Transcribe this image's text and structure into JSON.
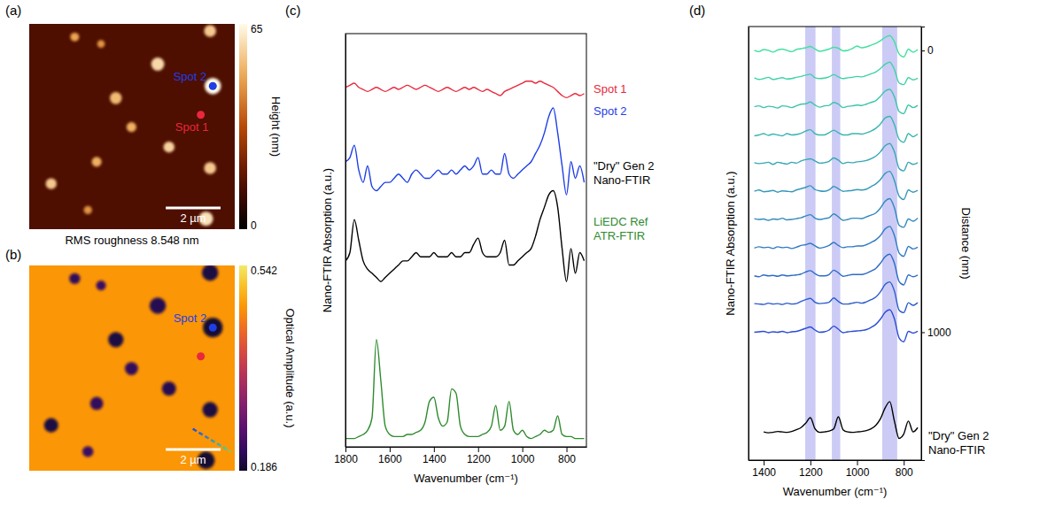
{
  "chart_data": [
    {
      "type": "image",
      "panel": "(a)",
      "xlim": [
        0,
        7.5
      ],
      "ylim": [
        0,
        7.5
      ],
      "tick_labels": false,
      "background": 14,
      "grains": [
        {
          "x": 1.66,
          "y": 0.48,
          "r": 0.16,
          "height": 48
        },
        {
          "x": 6.6,
          "y": 0.26,
          "r": 0.22,
          "height": 55
        },
        {
          "x": 6.7,
          "y": 2.27,
          "r": 0.3,
          "height": 65
        },
        {
          "x": 4.69,
          "y": 1.47,
          "r": 0.24,
          "height": 58
        },
        {
          "x": 3.16,
          "y": 2.71,
          "r": 0.22,
          "height": 52
        },
        {
          "x": 3.73,
          "y": 3.77,
          "r": 0.18,
          "height": 50
        },
        {
          "x": 2.46,
          "y": 5.04,
          "r": 0.18,
          "height": 50
        },
        {
          "x": 0.8,
          "y": 5.84,
          "r": 0.2,
          "height": 55
        },
        {
          "x": 5.1,
          "y": 4.5,
          "r": 0.2,
          "height": 57
        },
        {
          "x": 6.6,
          "y": 5.27,
          "r": 0.22,
          "height": 55
        },
        {
          "x": 6.45,
          "y": 7.12,
          "r": 0.26,
          "height": 60
        },
        {
          "x": 2.14,
          "y": 6.8,
          "r": 0.15,
          "height": 45
        },
        {
          "x": 2.62,
          "y": 0.73,
          "r": 0.14,
          "height": 45
        }
      ],
      "spots": [
        {
          "name": "Spot 2",
          "color": "#1e3ee6",
          "x": 6.7,
          "y": 2.27
        },
        {
          "name": "Spot 1",
          "color": "#e8283c",
          "x": 6.26,
          "y": 3.32
        }
      ],
      "scale_bar": {
        "length": 2,
        "label": "2 µm"
      },
      "colorbar": {
        "label": "Height (nm)",
        "range": [
          0,
          65
        ],
        "ticks": [
          0,
          65
        ]
      },
      "caption": "RMS roughness 8.548 nm"
    },
    {
      "type": "image",
      "panel": "(b)",
      "xlim": [
        0,
        7.5
      ],
      "ylim": [
        0,
        7.5
      ],
      "tick_labels": false,
      "background": 0.47,
      "grains": [
        {
          "x": 1.66,
          "y": 0.48,
          "r": 0.2,
          "amplitude": 0.22
        },
        {
          "x": 6.6,
          "y": 0.26,
          "r": 0.3,
          "amplitude": 0.2
        },
        {
          "x": 6.7,
          "y": 2.27,
          "r": 0.36,
          "amplitude": 0.19
        },
        {
          "x": 4.69,
          "y": 1.47,
          "r": 0.3,
          "amplitude": 0.21
        },
        {
          "x": 3.16,
          "y": 2.71,
          "r": 0.28,
          "amplitude": 0.2
        },
        {
          "x": 3.73,
          "y": 3.77,
          "r": 0.24,
          "amplitude": 0.22
        },
        {
          "x": 2.46,
          "y": 5.04,
          "r": 0.24,
          "amplitude": 0.22
        },
        {
          "x": 0.8,
          "y": 5.84,
          "r": 0.26,
          "amplitude": 0.2
        },
        {
          "x": 5.1,
          "y": 4.5,
          "r": 0.26,
          "amplitude": 0.21
        },
        {
          "x": 6.6,
          "y": 5.27,
          "r": 0.28,
          "amplitude": 0.2
        },
        {
          "x": 6.45,
          "y": 7.12,
          "r": 0.32,
          "amplitude": 0.19
        },
        {
          "x": 2.14,
          "y": 6.8,
          "r": 0.2,
          "amplitude": 0.23
        },
        {
          "x": 2.62,
          "y": 0.73,
          "r": 0.18,
          "amplitude": 0.23
        }
      ],
      "spots": [
        {
          "name": "Spot 2",
          "color": "#1e3ee6",
          "x": 6.7,
          "y": 2.27
        },
        {
          "color": "#e8283c",
          "x": 6.26,
          "y": 3.32
        }
      ],
      "line_scan": {
        "x": [
          5.97,
          7.34
        ],
        "y": [
          5.97,
          6.8
        ]
      },
      "scale_bar": {
        "length": 2,
        "label": "2 µm"
      },
      "colorbar": {
        "label": "Optical Amplitude (a.u.)",
        "range": [
          0.186,
          0.542
        ],
        "ticks": [
          0.186,
          0.542
        ]
      }
    },
    {
      "type": "line",
      "panel": "(c)",
      "xlabel": "Wavenumber (cm⁻¹)",
      "ylabel": "Nano-FTIR Absorption (a.u.)",
      "xlim": [
        1800,
        710
      ],
      "ylim": [
        0,
        100
      ],
      "xticks": [
        1800,
        1600,
        1400,
        1200,
        1000,
        800
      ],
      "tick_labels": "x",
      "x": [
        1800,
        1780,
        1760,
        1740,
        1720,
        1700,
        1680,
        1660,
        1640,
        1620,
        1600,
        1580,
        1560,
        1540,
        1520,
        1500,
        1480,
        1460,
        1440,
        1420,
        1400,
        1380,
        1360,
        1340,
        1320,
        1300,
        1280,
        1260,
        1240,
        1220,
        1200,
        1180,
        1160,
        1140,
        1120,
        1100,
        1080,
        1060,
        1040,
        1020,
        1000,
        980,
        960,
        940,
        920,
        900,
        880,
        860,
        840,
        820,
        800,
        780,
        760,
        740,
        720
      ],
      "series": [
        {
          "name": "Spot 1",
          "color": "#e8283c",
          "values": [
            87,
            87.5,
            88,
            87,
            86.5,
            86,
            86.5,
            87,
            86.5,
            86,
            86.5,
            87,
            86.5,
            87,
            87.5,
            87,
            86.5,
            87,
            87.5,
            87,
            86.5,
            86,
            86.5,
            87,
            86.5,
            86,
            86.5,
            87,
            86.5,
            87,
            86.5,
            86,
            86.5,
            86,
            85.5,
            85,
            86,
            86.5,
            87,
            87.5,
            88,
            88.5,
            88.5,
            88,
            88.5,
            88,
            87.5,
            87,
            86,
            85,
            84.5,
            85,
            85.5,
            85,
            85.5
          ]
        },
        {
          "name": "Spot 2",
          "color": "#1e3ee6",
          "values": [
            69,
            70,
            73,
            67,
            64,
            68,
            63,
            62,
            63,
            64,
            64,
            65,
            66,
            65,
            64,
            66,
            67,
            66,
            65,
            65,
            66,
            67,
            66,
            66,
            67,
            66,
            67,
            68,
            67,
            68,
            70,
            66,
            66,
            67,
            66,
            66,
            71,
            66,
            65,
            66,
            67,
            68,
            69,
            71,
            73,
            76,
            80,
            82,
            76,
            68,
            61,
            69,
            65,
            68,
            64
          ]
        },
        {
          "name": "\"Dry\" Gen 2\nNano-FTIR",
          "color": "#000000",
          "values": [
            45,
            47,
            55,
            50,
            45,
            43,
            42,
            41,
            40,
            41,
            42,
            43,
            44,
            45,
            45,
            46,
            47,
            46,
            46,
            46,
            47,
            46,
            46,
            46,
            47,
            46,
            46,
            47,
            47,
            49,
            50.5,
            47,
            46,
            46,
            46,
            47,
            50,
            44,
            44,
            45,
            46,
            47,
            48,
            51,
            55,
            58,
            61,
            62,
            58,
            48,
            40,
            48,
            42,
            47,
            45
          ]
        },
        {
          "name": "LiEDC Ref\nATR-FTIR",
          "color": "#2e8b2e",
          "values": [
            2,
            2,
            2,
            2.5,
            3,
            4,
            7,
            26,
            16,
            5,
            3,
            2.5,
            2.5,
            2.5,
            3,
            3,
            3.5,
            4,
            6,
            11,
            12,
            7,
            5,
            6,
            14,
            13,
            5,
            3,
            2.5,
            2.5,
            2.5,
            3,
            3.5,
            5,
            10,
            4,
            5,
            11,
            4,
            3,
            4,
            2.5,
            2,
            2.5,
            3,
            4,
            3.5,
            4,
            7.5,
            3,
            2.5,
            2.5,
            2,
            2,
            2
          ]
        }
      ]
    },
    {
      "type": "line",
      "panel": "(d)",
      "xlabel": "Wavenumber (cm⁻¹)",
      "ylabel": "Nano-FTIR Absorption (a.u.)",
      "y2label": "Distance (nm)",
      "xlim": [
        1465,
        725
      ],
      "ylim": [
        0,
        100
      ],
      "y2lim": [
        1454,
        -85
      ],
      "xticks": [
        1400,
        1200,
        1000,
        800
      ],
      "y2ticks": [
        0,
        1000
      ],
      "bands": [
        [
          1178,
          1222
        ],
        [
          1072,
          1108
        ],
        [
          828,
          892
        ]
      ],
      "x": [
        1440,
        1420,
        1400,
        1380,
        1360,
        1340,
        1320,
        1300,
        1280,
        1260,
        1240,
        1220,
        1200,
        1180,
        1160,
        1140,
        1120,
        1100,
        1080,
        1060,
        1040,
        1020,
        1000,
        980,
        960,
        940,
        920,
        900,
        880,
        860,
        840,
        820,
        800,
        780,
        760,
        740
      ],
      "series": [
        {
          "color": "#41e0a0",
          "values": [
            94.5,
            94.2,
            94.7,
            94.5,
            94.1,
            94.6,
            94.8,
            94.5,
            94.2,
            94.7,
            94.9,
            95.1,
            95.4,
            94.8,
            94.3,
            94.5,
            94.8,
            95.2,
            95.0,
            94.4,
            94.5,
            94.9,
            95.5,
            95.1,
            95.3,
            95.7,
            96.1,
            96.7,
            97.5,
            97.9,
            96.5,
            93.7,
            93.0,
            94.8,
            94.1,
            94.7
          ]
        },
        {
          "color": "#3fd2a6",
          "values": [
            88.2,
            87.8,
            88,
            88.3,
            87.8,
            88,
            88.2,
            87.9,
            88,
            88.3,
            88.5,
            88.8,
            89,
            88.2,
            88,
            88.1,
            88.4,
            88.9,
            88.4,
            88,
            88.2,
            88.3,
            88.5,
            88.4,
            88.7,
            89.1,
            89.5,
            90.3,
            91.3,
            91.8,
            90.1,
            87,
            86.6,
            88.2,
            87.7,
            88.1
          ]
        },
        {
          "color": "#3cc4ab",
          "values": [
            81.5,
            81.7,
            81.3,
            81.6,
            81.5,
            81.2,
            81.7,
            81.6,
            81.3,
            81.7,
            82.1,
            82.2,
            82.6,
            81.9,
            81.4,
            81.7,
            81.8,
            82.5,
            82.1,
            81.3,
            81.6,
            81.7,
            81.9,
            81.8,
            82.1,
            82.5,
            82.9,
            83.9,
            85.1,
            85.5,
            83.8,
            80.4,
            79.9,
            81.9,
            81.3,
            81.8
          ]
        },
        {
          "color": "#3ab5b0",
          "values": [
            74.8,
            75,
            75.3,
            74.9,
            75.2,
            75,
            74.8,
            75.3,
            75,
            75.1,
            75.4,
            75.9,
            76.2,
            75.3,
            75,
            75,
            75.5,
            76.1,
            75.5,
            75,
            75,
            75.3,
            75.3,
            75.2,
            75.5,
            75.9,
            76.5,
            77.5,
            78.9,
            79.3,
            77.4,
            74,
            73.3,
            75.3,
            74.6,
            75.2
          ]
        },
        {
          "color": "#37a6b5",
          "values": [
            68.6,
            68.4,
            68.5,
            68.7,
            68.2,
            68.7,
            68.5,
            68.3,
            68.7,
            68.5,
            69,
            69.3,
            69.5,
            69,
            68.5,
            68.6,
            68.9,
            69.7,
            69.2,
            68.4,
            68.7,
            68.6,
            68.8,
            68.9,
            69.1,
            69.5,
            70.1,
            71.1,
            72.5,
            73,
            71.1,
            67.3,
            66.7,
            68.7,
            68.2,
            68.6
          ]
        },
        {
          "color": "#3597ba",
          "values": [
            62,
            62.3,
            61.9,
            62,
            62.2,
            61.8,
            62.1,
            62,
            61.9,
            62.3,
            62.6,
            62.9,
            63.3,
            62.4,
            62.1,
            62,
            62.3,
            63.1,
            62.6,
            62,
            62.1,
            62.2,
            62.4,
            62.3,
            62.5,
            63.1,
            63.7,
            64.7,
            66.1,
            66.6,
            64.5,
            60.9,
            60.1,
            62.3,
            61.8,
            62.2
          ]
        },
        {
          "color": "#3288bf",
          "values": [
            55.7,
            55.5,
            55.6,
            55.3,
            55.6,
            55.5,
            55.8,
            55.4,
            55.5,
            55.7,
            55.9,
            56.3,
            56.6,
            55.8,
            55.5,
            55.7,
            55.9,
            56.8,
            56.1,
            55.3,
            55.5,
            55.8,
            55.8,
            55.7,
            56.1,
            56.5,
            57,
            58.1,
            59.7,
            60.3,
            58.2,
            54.2,
            53.7,
            55.6,
            55.1,
            55.8
          ]
        },
        {
          "color": "#3079c4",
          "values": [
            48.9,
            49.2,
            49,
            49.1,
            48.8,
            49.2,
            49,
            49.1,
            48.8,
            49.1,
            49.5,
            49.7,
            50,
            49.4,
            48.9,
            49.1,
            49.5,
            50.2,
            49.5,
            49,
            49.2,
            49.2,
            49.4,
            49.4,
            49.7,
            50.2,
            50.8,
            51.8,
            53.3,
            53.9,
            51.8,
            47.8,
            47,
            49.3,
            48.7,
            49.1
          ]
        },
        {
          "color": "#2d6ac9",
          "values": [
            42.5,
            42.3,
            42.7,
            42.5,
            42.6,
            42.4,
            42.7,
            42.5,
            42.6,
            42.7,
            42.9,
            43.4,
            43.7,
            43,
            42.5,
            42.5,
            42.8,
            43.8,
            43.2,
            42.4,
            42.6,
            42.8,
            42.8,
            42.8,
            43.1,
            43.6,
            44.2,
            45.4,
            46.9,
            47.5,
            45.4,
            41.2,
            40.4,
            42.7,
            42.3,
            42.7
          ]
        },
        {
          "color": "#2b5bce",
          "values": [
            36.1,
            36,
            35.9,
            36.2,
            36,
            36.1,
            35.9,
            36.2,
            36,
            36.1,
            36.6,
            37,
            37.3,
            36.4,
            36.1,
            36.2,
            36.4,
            37.4,
            36.6,
            36,
            36,
            36.2,
            36.4,
            36.2,
            36.5,
            37,
            37.6,
            38.8,
            40.5,
            41.1,
            39,
            34.6,
            34,
            36.3,
            35.7,
            36.3
          ]
        },
        {
          "color": "#2a4cd4",
          "values": [
            29.5,
            29.6,
            29.7,
            29.4,
            29.6,
            29.5,
            29.7,
            29.4,
            29.6,
            29.7,
            30,
            30.4,
            30.7,
            30,
            29.5,
            29.6,
            30,
            30.9,
            30.2,
            29.4,
            29.6,
            29.7,
            29.8,
            29.9,
            30.1,
            30.6,
            31.3,
            32.5,
            34.1,
            34.7,
            32.6,
            28.2,
            27.3,
            29.7,
            29.3,
            29.7
          ]
        },
        {
          "name": "\"Dry\" Gen 2\nNano-FTIR",
          "color": "#000000",
          "values": [
            null,
            null,
            6.5,
            6.3,
            6.4,
            6.6,
            6.5,
            6.4,
            6.6,
            7.0,
            7.5,
            8.5,
            9.8,
            7.2,
            6.4,
            6.5,
            6.7,
            7.2,
            10.0,
            7.0,
            6.5,
            6.4,
            6.5,
            6.6,
            6.8,
            7.2,
            8.0,
            9.5,
            12.0,
            13.5,
            9.0,
            5.0,
            6.0,
            9.0,
            6.5,
            7.5
          ]
        }
      ]
    }
  ]
}
